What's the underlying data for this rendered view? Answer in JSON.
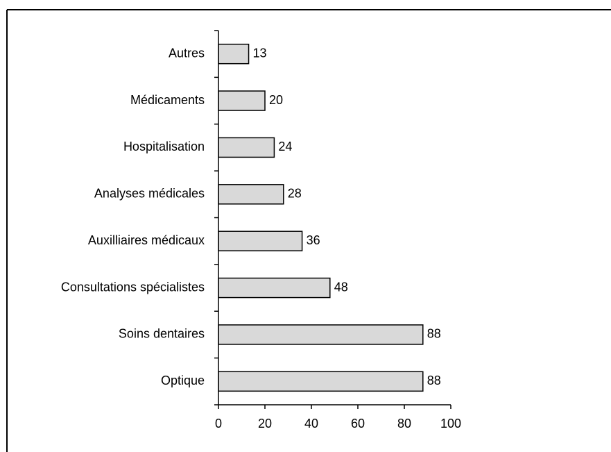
{
  "chart_data": {
    "type": "bar",
    "orientation": "horizontal",
    "categories": [
      "Autres",
      "Médicaments",
      "Hospitalisation",
      "Analyses médicales",
      "Auxilliaires médicaux",
      "Consultations spécialistes",
      "Soins dentaires",
      "Optique"
    ],
    "values": [
      13,
      20,
      24,
      28,
      36,
      48,
      88,
      88
    ],
    "color": "#d9d9d9",
    "xlim": [
      0,
      100
    ],
    "xticks": [
      0,
      20,
      40,
      60,
      80,
      100
    ]
  }
}
